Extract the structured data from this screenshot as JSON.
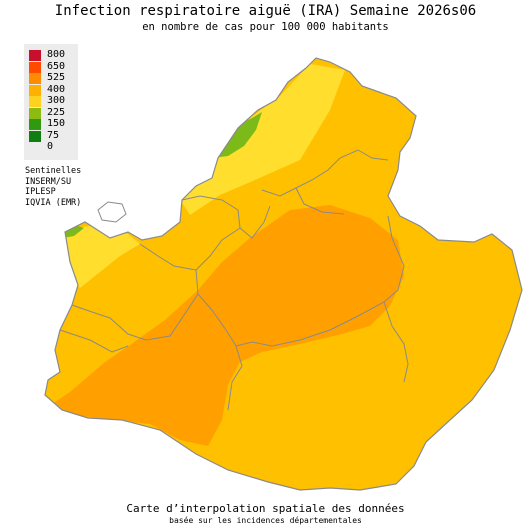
{
  "map": {
    "title": "Infection respiratoire aiguë (IRA) Semaine 2026s06",
    "subtitle": "en nombre de cas pour 100 000 habitants",
    "footer_line1": "Carte d’interpolation spatiale des données",
    "footer_line2": "basée sur les incidences départementales"
  },
  "legend": {
    "items": [
      {
        "label": "800",
        "color": "#c8102e"
      },
      {
        "label": "650",
        "color": "#ff4a00"
      },
      {
        "label": "525",
        "color": "#ff8c00"
      },
      {
        "label": "400",
        "color": "#ffb000"
      },
      {
        "label": "300",
        "color": "#ffd21f"
      },
      {
        "label": "225",
        "color": "#8dbb12"
      },
      {
        "label": "150",
        "color": "#2f9a10"
      },
      {
        "label": "75",
        "color": "#107d10"
      },
      {
        "label": "0",
        "color": ""
      }
    ]
  },
  "sources": [
    "Sentinelles",
    "INSERM/SU",
    "IPLESP",
    "IQVIA (EMR)"
  ],
  "colors": {
    "base": "#ffc000",
    "hot": "#ffa000",
    "light": "#ffde2e",
    "green": "#7cba1a",
    "border": "#8a8a8a",
    "enclave": "#ffffff"
  }
}
